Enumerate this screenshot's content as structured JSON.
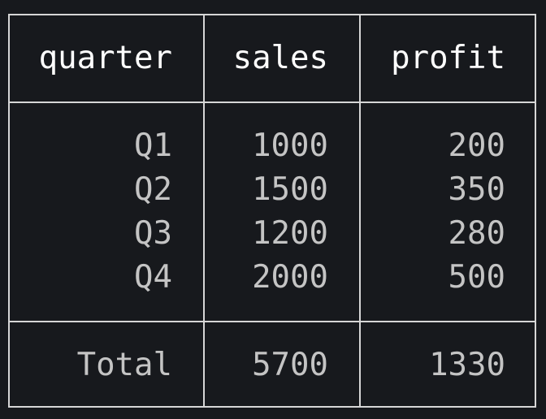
{
  "table": {
    "columns": [
      "quarter",
      "sales",
      "profit"
    ],
    "rows": [
      [
        "Q1",
        "1000",
        "200"
      ],
      [
        "Q2",
        "1500",
        "350"
      ],
      [
        "Q3",
        "1200",
        "280"
      ],
      [
        "Q4",
        "2000",
        "500"
      ]
    ],
    "footer": [
      "Total",
      "5700",
      "1330"
    ]
  },
  "colors": {
    "background": "#17191d",
    "border": "#d6d6d6",
    "header_text": "#ffffff",
    "body_text": "#c4c4c4"
  }
}
